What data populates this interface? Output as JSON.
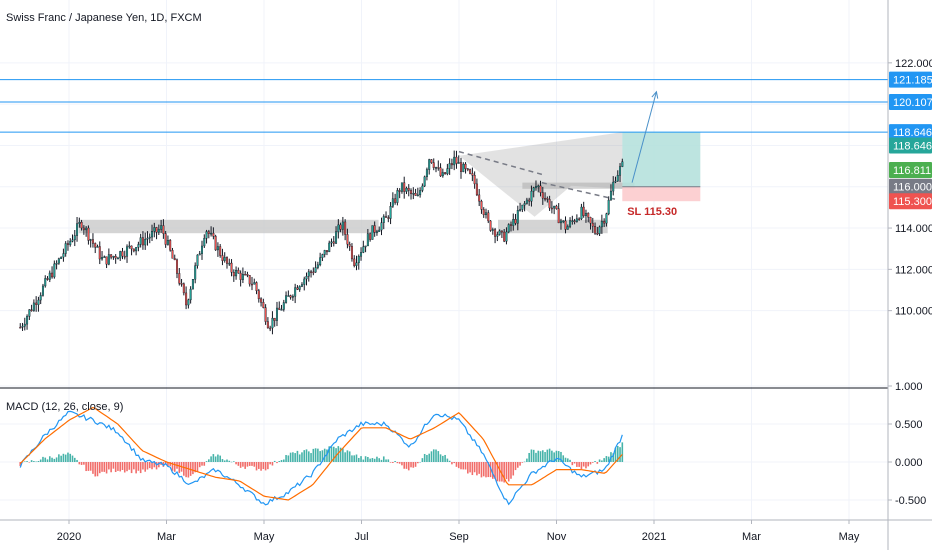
{
  "symbol": {
    "title": "Swiss Franc / Japanese Yen, 1D, FXCM"
  },
  "macd": {
    "legend": "MACD (12, 26, close, 9)",
    "y_ticks": [
      {
        "value": 1.0,
        "label": "1.000"
      },
      {
        "value": 0.5,
        "label": "0.500"
      },
      {
        "value": 0.0,
        "label": "0.000"
      },
      {
        "value": -0.5,
        "label": "-0.500"
      }
    ],
    "ylim": [
      -0.78,
      1.02
    ]
  },
  "colors": {
    "up": "#26a69a",
    "down": "#ef5350",
    "wick": "#131722",
    "hline": "#2196f3",
    "macd_line": "#2196f3",
    "signal_line": "#ff6d00",
    "target_zone": "#b2dfdb",
    "stop_zone": "#fccbcd",
    "sr_zone": "#c9c9c9"
  },
  "chart_data": {
    "type": "candlestick",
    "ylim": [
      109.0,
      122.6
    ],
    "y_ticks": [
      {
        "value": 122.0,
        "label": "122.000"
      },
      {
        "value": 110.0,
        "label": "110.000"
      },
      {
        "value": 112.0,
        "label": "112.000"
      },
      {
        "value": 114.0,
        "label": "114.000"
      }
    ],
    "x_ticks": [
      {
        "label": "2020",
        "month_index": 12
      },
      {
        "label": "Mar",
        "month_index": 14
      },
      {
        "label": "May",
        "month_index": 16
      },
      {
        "label": "Jul",
        "month_index": 18
      },
      {
        "label": "Sep",
        "month_index": 20
      },
      {
        "label": "Nov",
        "month_index": 22
      },
      {
        "label": "2021",
        "month_index": 24
      },
      {
        "label": "Mar",
        "month_index": 26
      },
      {
        "label": "May",
        "month_index": 28
      }
    ],
    "key_points": [
      {
        "month_index": 11.0,
        "price": 109.2
      },
      {
        "month_index": 12.25,
        "price": 114.3
      },
      {
        "month_index": 12.7,
        "price": 112.4
      },
      {
        "month_index": 13.4,
        "price": 113.2
      },
      {
        "month_index": 13.9,
        "price": 114.0
      },
      {
        "month_index": 14.2,
        "price": 112.0
      },
      {
        "month_index": 14.4,
        "price": 110.3
      },
      {
        "month_index": 14.8,
        "price": 114.0
      },
      {
        "month_index": 15.3,
        "price": 112.0
      },
      {
        "month_index": 15.8,
        "price": 111.3
      },
      {
        "month_index": 16.1,
        "price": 109.3
      },
      {
        "month_index": 16.7,
        "price": 111.3
      },
      {
        "month_index": 17.1,
        "price": 112.2
      },
      {
        "month_index": 17.6,
        "price": 114.2
      },
      {
        "month_index": 17.85,
        "price": 112.4
      },
      {
        "month_index": 18.2,
        "price": 113.8
      },
      {
        "month_index": 18.5,
        "price": 114.4
      },
      {
        "month_index": 18.8,
        "price": 116.0
      },
      {
        "month_index": 19.15,
        "price": 115.4
      },
      {
        "month_index": 19.4,
        "price": 117.5
      },
      {
        "month_index": 19.65,
        "price": 116.4
      },
      {
        "month_index": 19.9,
        "price": 117.3
      },
      {
        "month_index": 20.3,
        "price": 116.3
      },
      {
        "month_index": 20.6,
        "price": 114.2
      },
      {
        "month_index": 20.9,
        "price": 113.5
      },
      {
        "month_index": 21.2,
        "price": 114.6
      },
      {
        "month_index": 21.6,
        "price": 116.1
      },
      {
        "month_index": 21.9,
        "price": 115.0
      },
      {
        "month_index": 22.2,
        "price": 114.0
      },
      {
        "month_index": 22.5,
        "price": 114.8
      },
      {
        "month_index": 22.8,
        "price": 113.8
      },
      {
        "month_index": 23.0,
        "price": 114.6
      },
      {
        "month_index": 23.2,
        "price": 116.5
      },
      {
        "month_index": 23.35,
        "price": 117.0
      }
    ],
    "macd_points": [
      {
        "month_index": 11.0,
        "macd": -0.05,
        "signal": -0.02
      },
      {
        "month_index": 11.5,
        "macd": 0.35,
        "signal": 0.3
      },
      {
        "month_index": 12.0,
        "macd": 0.65,
        "signal": 0.55
      },
      {
        "month_index": 12.5,
        "macd": 0.55,
        "signal": 0.72
      },
      {
        "month_index": 13.0,
        "macd": 0.4,
        "signal": 0.5
      },
      {
        "month_index": 13.5,
        "macd": 0.02,
        "signal": 0.15
      },
      {
        "month_index": 14.0,
        "macd": -0.05,
        "signal": 0.0
      },
      {
        "month_index": 14.5,
        "macd": -0.3,
        "signal": -0.1
      },
      {
        "month_index": 15.0,
        "macd": -0.1,
        "signal": -0.2
      },
      {
        "month_index": 15.5,
        "macd": -0.3,
        "signal": -0.25
      },
      {
        "month_index": 16.0,
        "macd": -0.55,
        "signal": -0.45
      },
      {
        "month_index": 16.5,
        "macd": -0.4,
        "signal": -0.5
      },
      {
        "month_index": 17.0,
        "macd": -0.15,
        "signal": -0.3
      },
      {
        "month_index": 17.5,
        "macd": 0.3,
        "signal": 0.1
      },
      {
        "month_index": 18.0,
        "macd": 0.5,
        "signal": 0.45
      },
      {
        "month_index": 18.5,
        "macd": 0.5,
        "signal": 0.45
      },
      {
        "month_index": 19.0,
        "macd": 0.2,
        "signal": 0.3
      },
      {
        "month_index": 19.5,
        "macd": 0.65,
        "signal": 0.45
      },
      {
        "month_index": 20.0,
        "macd": 0.55,
        "signal": 0.65
      },
      {
        "month_index": 20.5,
        "macd": 0.1,
        "signal": 0.3
      },
      {
        "month_index": 21.0,
        "macd": -0.55,
        "signal": -0.3
      },
      {
        "month_index": 21.5,
        "macd": -0.15,
        "signal": -0.3
      },
      {
        "month_index": 22.0,
        "macd": 0.05,
        "signal": -0.1
      },
      {
        "month_index": 22.5,
        "macd": -0.2,
        "signal": -0.1
      },
      {
        "month_index": 23.0,
        "macd": -0.1,
        "signal": -0.15
      },
      {
        "month_index": 23.35,
        "macd": 0.35,
        "signal": 0.1
      }
    ],
    "horizontal_lines": [
      {
        "price": 121.185,
        "label": "121.185"
      },
      {
        "price": 120.107,
        "label": "120.107"
      },
      {
        "price": 118.646,
        "label": "118.646"
      }
    ],
    "price_labels": [
      {
        "price": 121.185,
        "label": "121.185",
        "bg": "#2196f3",
        "fg": "#ffffff"
      },
      {
        "price": 120.107,
        "label": "120.107",
        "bg": "#2196f3",
        "fg": "#ffffff"
      },
      {
        "price": 118.646,
        "label": "118.646",
        "bg": "#2196f3",
        "fg": "#ffffff"
      },
      {
        "price": 118.0,
        "label": "118.646",
        "bg": "#26a69a",
        "fg": "#ffffff"
      },
      {
        "price": 116.811,
        "label": "116.811",
        "bg": "#4caf50",
        "fg": "#ffffff"
      },
      {
        "price": 116.0,
        "label": "116.000",
        "bg": "#787b86",
        "fg": "#ffffff"
      },
      {
        "price": 115.3,
        "label": "115.300",
        "bg": "#ef5350",
        "fg": "#ffffff"
      }
    ],
    "position": {
      "entry": 116.0,
      "target": 118.646,
      "stop": 115.3,
      "start_month_index": 23.35,
      "end_month_index": 24.95
    },
    "sl_label": "SL 115.30",
    "sr_zones": [
      {
        "x0": 12.2,
        "x1": 18.35,
        "y0": 113.75,
        "y1": 114.4
      },
      {
        "x0": 20.8,
        "x1": 23.05,
        "y0": 113.75,
        "y1": 114.4
      },
      {
        "x0": 21.3,
        "x1": 23.6,
        "y0": 115.9,
        "y1": 116.2
      }
    ],
    "wedge": [
      {
        "month_index": 20.0,
        "price": 117.5
      },
      {
        "month_index": 23.35,
        "price": 118.646
      },
      {
        "month_index": 23.35,
        "price": 115.9
      },
      {
        "month_index": 22.3,
        "price": 116.05
      },
      {
        "month_index": 21.55,
        "price": 114.55
      }
    ],
    "dashed_lines": [
      {
        "from": {
          "month_index": 20.0,
          "price": 117.7
        },
        "to": {
          "month_index": 21.7,
          "price": 116.6
        }
      },
      {
        "from": {
          "month_index": 21.7,
          "price": 116.2
        },
        "to": {
          "month_index": 23.2,
          "price": 115.4
        }
      }
    ],
    "arrow": {
      "from": {
        "month_index": 23.55,
        "price": 116.2
      },
      "to": {
        "month_index": 24.05,
        "price": 120.6
      }
    }
  }
}
